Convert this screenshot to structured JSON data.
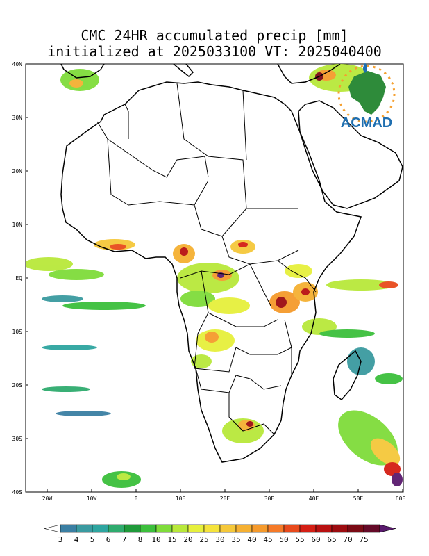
{
  "title": {
    "line1": "CMC 24HR accumulated precip [mm]",
    "line2": "initialized at 2025033100 VT: 2025040400"
  },
  "logo": {
    "text": "ACMAD"
  },
  "axes": {
    "y_ticks": [
      "40N",
      "30N",
      "20N",
      "10N",
      "EQ",
      "10S",
      "20S",
      "30S",
      "40S"
    ],
    "x_ticks": [
      "20W",
      "10W",
      "0",
      "10E",
      "20E",
      "30E",
      "40E",
      "50E",
      "60E"
    ]
  },
  "colorbar": {
    "labels": [
      "3",
      "4",
      "5",
      "6",
      "7",
      "8",
      "10",
      "15",
      "20",
      "25",
      "30",
      "35",
      "40",
      "45",
      "50",
      "55",
      "60",
      "65",
      "70",
      "75"
    ],
    "colors": [
      "#3a7fa3",
      "#3a9aa0",
      "#2ea5a0",
      "#2fab6e",
      "#1f9a3a",
      "#3cbf3c",
      "#7fdc3a",
      "#b8e83a",
      "#e6f03c",
      "#f5e33c",
      "#f5c83a",
      "#f5b032",
      "#f59a2c",
      "#f57a28",
      "#e84a1c",
      "#d41e14",
      "#b81010",
      "#9c0c10",
      "#7a0a14",
      "#640a28",
      "#5a1a6e"
    ]
  },
  "legend_colors": {
    "land_outline": "#000000",
    "background": "#ffffff"
  }
}
